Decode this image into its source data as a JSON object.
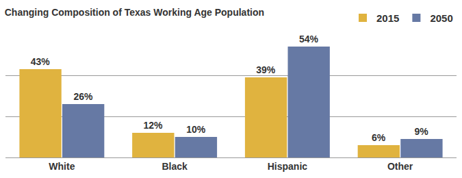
{
  "chart_data": {
    "type": "bar",
    "title": "Changing Composition of Texas Working Age Population",
    "categories": [
      "White",
      "Black",
      "Hispanic",
      "Other"
    ],
    "series": [
      {
        "name": "2015",
        "color": "#e0b33f",
        "values": [
          43,
          12,
          39,
          6
        ],
        "value_labels": [
          "43%",
          "12%",
          "39%",
          "6%"
        ]
      },
      {
        "name": "2050",
        "color": "#6679a4",
        "values": [
          26,
          10,
          54,
          9
        ],
        "value_labels": [
          "26%",
          "10%",
          "54%",
          "9%"
        ]
      }
    ],
    "ylim": [
      0,
      60
    ],
    "yticks": [
      0,
      20,
      40,
      60
    ],
    "grid": true,
    "legend": "top right",
    "data_labels": true,
    "tick_labels": "x"
  }
}
